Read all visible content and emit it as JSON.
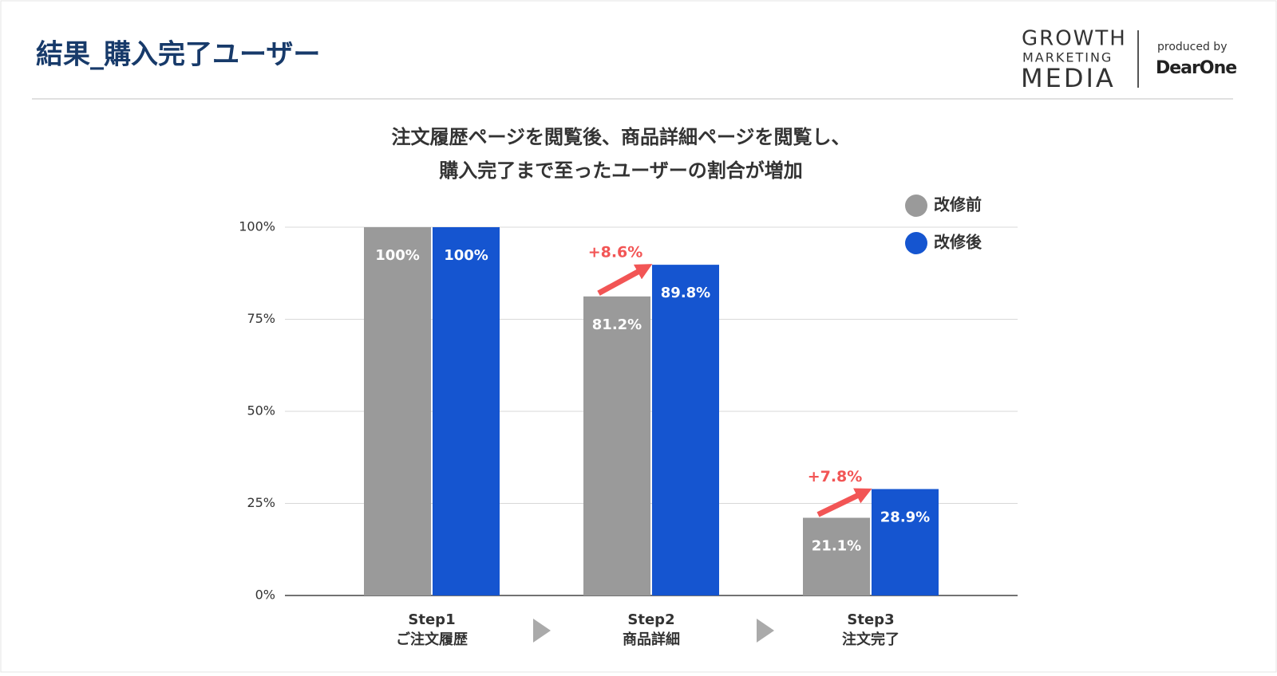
{
  "header": {
    "title": "結果_購入完了ユーザー",
    "logo": {
      "line1": "GROWTH",
      "line2": "MARKETING",
      "line3": "MEDIA",
      "produced": "produced by",
      "brand": "DearOne"
    }
  },
  "chart_data": {
    "type": "bar",
    "title": [
      "注文履歴ページを閲覧後、商品詳細ページを閲覧し、",
      "購入完了まで至ったユーザーの割合が増加"
    ],
    "categories": [
      [
        "Step1",
        "ご注文履歴"
      ],
      [
        "Step2",
        "商品詳細"
      ],
      [
        "Step3",
        "注文完了"
      ]
    ],
    "series": [
      {
        "name": "改修前",
        "color": "#9a9a9a",
        "values": [
          100,
          81.2,
          21.1
        ],
        "value_labels": [
          "100%",
          "81.2%",
          "21.1%"
        ]
      },
      {
        "name": "改修後",
        "color": "#1555d0",
        "values": [
          100,
          89.8,
          28.9
        ],
        "value_labels": [
          "100%",
          "89.8%",
          "28.9%"
        ]
      }
    ],
    "annotations": [
      null,
      "+8.6%",
      "+7.8%"
    ],
    "annotation_color": "#f25555",
    "ylim": [
      0,
      100
    ],
    "yticks": [
      {
        "value": 0,
        "label": "0%"
      },
      {
        "value": 25,
        "label": "25%"
      },
      {
        "value": 50,
        "label": "50%"
      },
      {
        "value": 75,
        "label": "75%"
      },
      {
        "value": 100,
        "label": "100%"
      }
    ],
    "grid": true
  }
}
